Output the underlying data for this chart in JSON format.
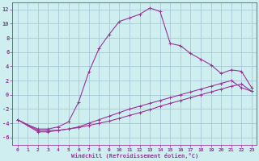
{
  "xlabel": "Windchill (Refroidissement éolien,°C)",
  "bg_color": "#ceeef0",
  "grid_color": "#a8c8d8",
  "line_color": "#993399",
  "xlim": [
    -0.5,
    23.5
  ],
  "ylim": [
    -7,
    13
  ],
  "xticks": [
    0,
    1,
    2,
    3,
    4,
    5,
    6,
    7,
    8,
    9,
    10,
    11,
    12,
    13,
    14,
    15,
    16,
    17,
    18,
    19,
    20,
    21,
    22,
    23
  ],
  "yticks": [
    -6,
    -4,
    -2,
    0,
    2,
    4,
    6,
    8,
    10,
    12
  ],
  "series1_x": [
    0,
    1,
    2,
    3,
    4,
    5,
    6,
    7,
    8,
    9,
    10,
    11,
    12,
    13,
    14,
    15,
    16,
    17,
    18,
    19,
    20,
    21,
    22,
    23
  ],
  "series1_y": [
    -3.5,
    -4.2,
    -4.8,
    -4.8,
    -4.5,
    -3.8,
    -1.0,
    3.2,
    6.5,
    8.5,
    10.3,
    10.8,
    11.3,
    12.2,
    11.7,
    7.2,
    6.9,
    5.8,
    5.0,
    4.2,
    3.0,
    3.5,
    3.3,
    1.0
  ],
  "series2_x": [
    0,
    2,
    3,
    4,
    5,
    6,
    7,
    8,
    9,
    10,
    11,
    12,
    13,
    14,
    15,
    16,
    17,
    18,
    19,
    20,
    21,
    22,
    23
  ],
  "series2_y": [
    -3.5,
    -5.0,
    -5.0,
    -5.0,
    -4.8,
    -4.5,
    -4.0,
    -3.5,
    -3.0,
    -2.5,
    -2.0,
    -1.6,
    -1.2,
    -0.8,
    -0.4,
    0.0,
    0.4,
    0.8,
    1.2,
    1.6,
    2.0,
    1.0,
    0.5
  ],
  "series3_x": [
    0,
    2,
    3,
    4,
    5,
    6,
    7,
    8,
    9,
    10,
    11,
    12,
    13,
    14,
    15,
    16,
    17,
    18,
    19,
    20,
    21,
    22,
    23
  ],
  "series3_y": [
    -3.5,
    -5.2,
    -5.2,
    -5.0,
    -4.8,
    -4.6,
    -4.3,
    -4.0,
    -3.7,
    -3.3,
    -2.9,
    -2.5,
    -2.1,
    -1.6,
    -1.2,
    -0.8,
    -0.4,
    0.0,
    0.4,
    0.8,
    1.2,
    1.5,
    0.5
  ]
}
